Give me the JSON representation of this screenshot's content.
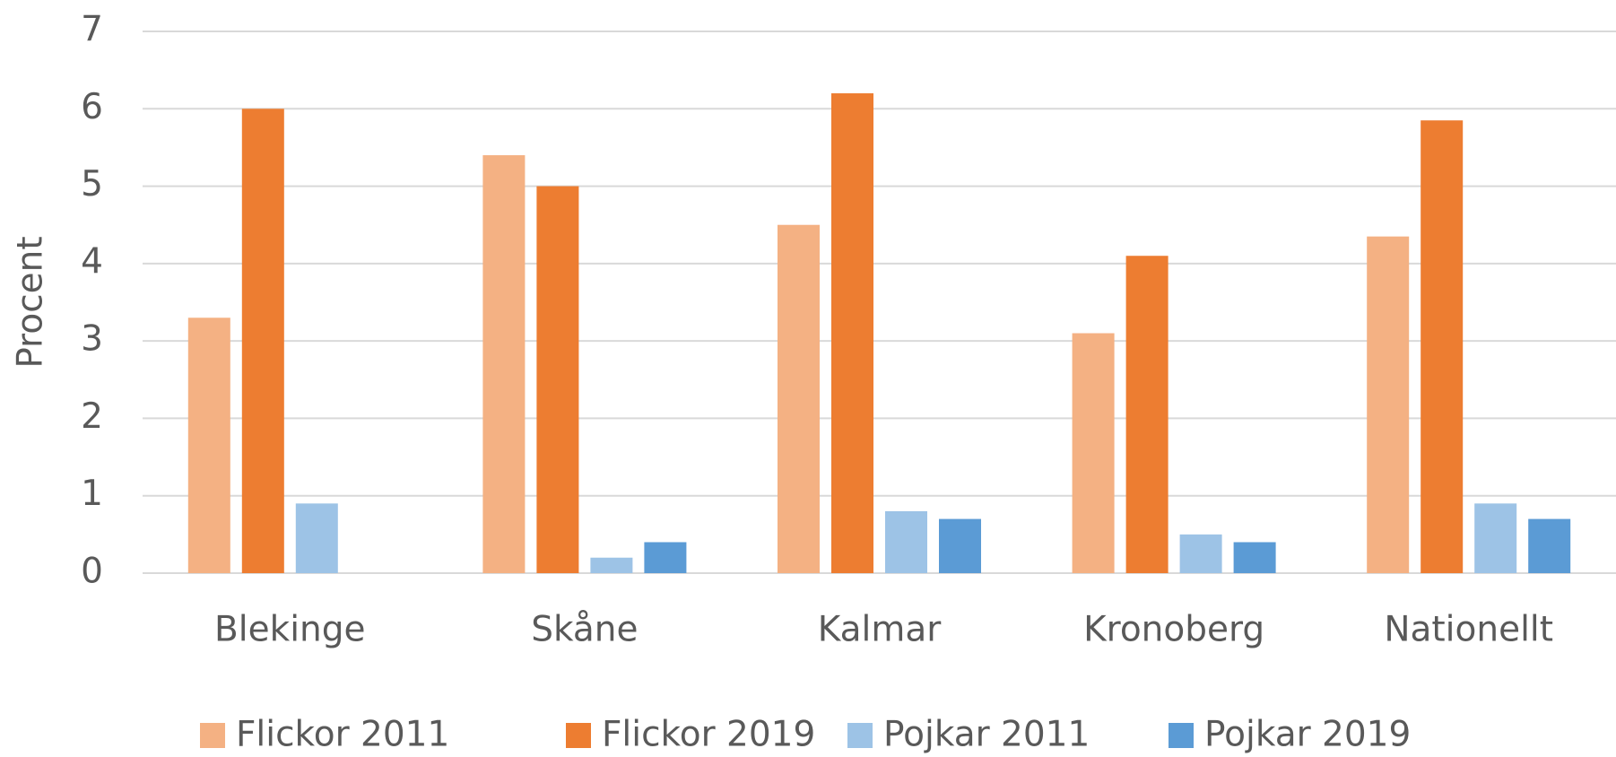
{
  "chart_data": {
    "type": "bar",
    "categories": [
      "Blekinge",
      "Skåne",
      "Kalmar",
      "Kronoberg",
      "Nationellt"
    ],
    "series": [
      {
        "name": "Flickor 2011",
        "color": "#f4b183",
        "values": [
          3.3,
          5.4,
          4.5,
          3.1,
          4.35
        ]
      },
      {
        "name": "Flickor 2019",
        "color": "#ed7d31",
        "values": [
          6.0,
          5.0,
          6.2,
          4.1,
          5.85
        ]
      },
      {
        "name": "Pojkar 2011",
        "color": "#9dc3e6",
        "values": [
          0.9,
          0.2,
          0.8,
          0.5,
          0.9
        ]
      },
      {
        "name": "Pojkar 2019",
        "color": "#5b9bd5",
        "values": [
          null,
          0.4,
          0.7,
          0.4,
          0.7
        ]
      }
    ],
    "ylabel": "Procent",
    "ylim": [
      0,
      7
    ],
    "yticks": [
      0,
      1,
      2,
      3,
      4,
      5,
      6,
      7
    ],
    "grid": true,
    "legend": "bottom"
  }
}
